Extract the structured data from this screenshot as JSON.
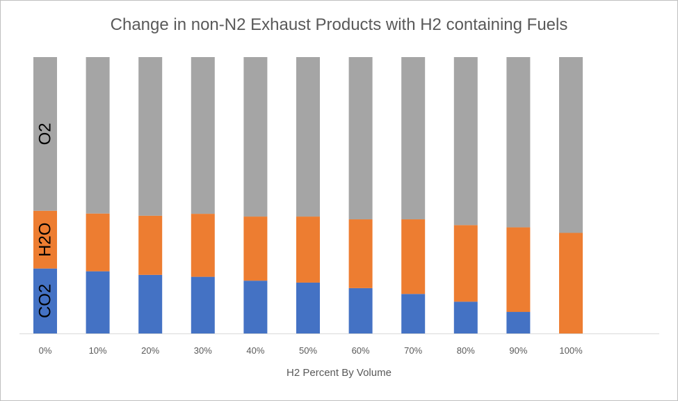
{
  "chart_data": {
    "type": "bar",
    "stacked": true,
    "normalized": true,
    "title": "Change in non-N2 Exhaust Products with H2 containing Fuels",
    "xlabel": "H2 Percent By Volume",
    "ylabel": "",
    "ylim": [
      0,
      1
    ],
    "grid": false,
    "legend": "none",
    "categories": [
      "0%",
      "10%",
      "20%",
      "30%",
      "40%",
      "50%",
      "60%",
      "70%",
      "80%",
      "90%",
      "100%"
    ],
    "series": [
      {
        "name": "CO2",
        "color": "#4472c4",
        "values": [
          0.235,
          0.225,
          0.212,
          0.205,
          0.191,
          0.184,
          0.164,
          0.143,
          0.115,
          0.078,
          0.0
        ]
      },
      {
        "name": "H2O",
        "color": "#ed7d31",
        "values": [
          0.209,
          0.209,
          0.214,
          0.228,
          0.232,
          0.239,
          0.249,
          0.27,
          0.277,
          0.306,
          0.364
        ]
      },
      {
        "name": "O2",
        "color": "#a5a5a5",
        "values": [
          0.556,
          0.566,
          0.574,
          0.567,
          0.577,
          0.577,
          0.587,
          0.587,
          0.608,
          0.616,
          0.636
        ]
      }
    ],
    "series_labels_in_bar": [
      "CO2",
      "H2O",
      "O2"
    ]
  }
}
